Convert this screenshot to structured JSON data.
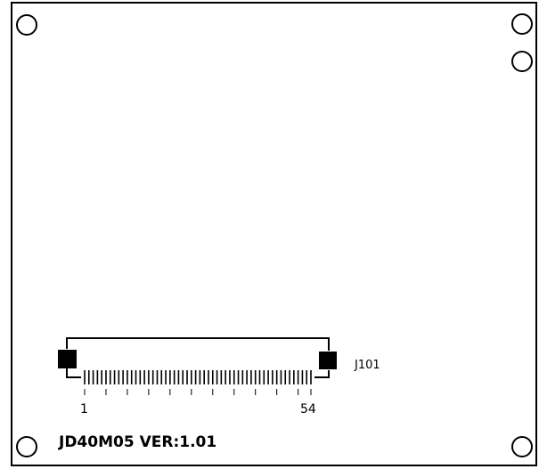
{
  "board": {
    "label": "JD40M05 VER:1.01"
  },
  "connector": {
    "ref": "J101",
    "pin_count": 54,
    "first_pin_label": "1",
    "last_pin_label": "54"
  },
  "mounting_holes": {
    "count": 5
  }
}
